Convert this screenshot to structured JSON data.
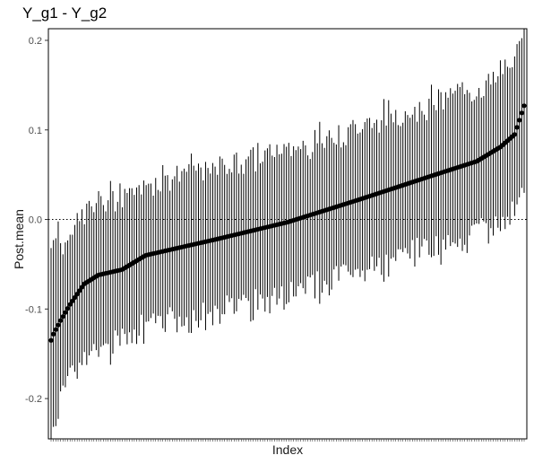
{
  "chart_data": {
    "type": "scatter",
    "title": "Y_g1 - Y_g2",
    "xlabel": "Index",
    "ylabel": "Post.mean",
    "ylim": [
      -0.245,
      0.213
    ],
    "yticks": [
      -0.2,
      -0.1,
      0.0,
      0.1,
      0.2
    ],
    "ytick_labels": [
      "-0.2",
      "-0.1",
      "0.0",
      "0.1",
      "0.2"
    ],
    "n_points": 200,
    "reference_line": {
      "y": 0.0,
      "style": "dotted"
    },
    "series": [
      {
        "mean_profile": {
          "index_fraction": [
            0.0,
            0.005,
            0.02,
            0.04,
            0.07,
            0.1,
            0.15,
            0.2,
            0.35,
            0.5,
            0.65,
            0.8,
            0.9,
            0.95,
            0.98,
            1.0
          ],
          "post_mean": [
            -0.135,
            -0.128,
            -0.113,
            -0.095,
            -0.072,
            -0.062,
            -0.056,
            -0.04,
            -0.022,
            -0.003,
            0.022,
            0.048,
            0.065,
            0.081,
            0.095,
            0.127
          ]
        },
        "interval_half_width_approx": 0.08
      }
    ],
    "grid": false,
    "legend": "none"
  }
}
